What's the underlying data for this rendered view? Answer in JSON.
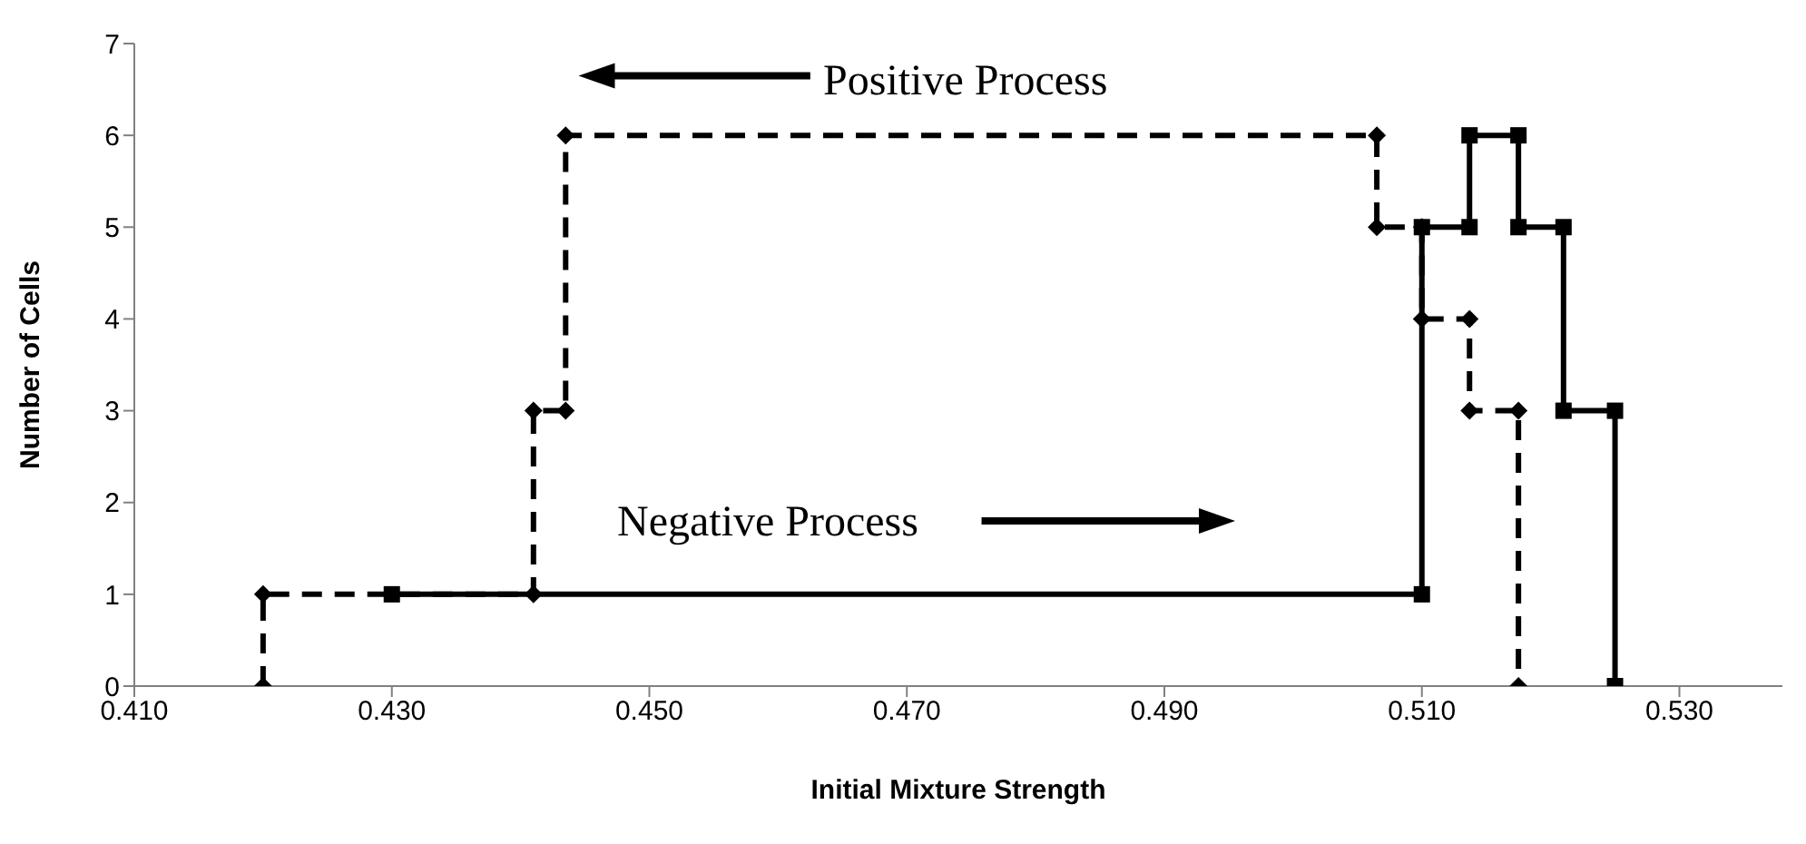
{
  "chart_data": {
    "type": "line",
    "xlabel": "Initial Mixture Strength",
    "ylabel": "Number of Cells",
    "xlim": [
      0.41,
      0.538
    ],
    "xticks": [
      {
        "value": 0.41,
        "label": "0.410"
      },
      {
        "value": 0.43,
        "label": "0.430"
      },
      {
        "value": 0.45,
        "label": "0.450"
      },
      {
        "value": 0.47,
        "label": "0.470"
      },
      {
        "value": 0.49,
        "label": "0.490"
      },
      {
        "value": 0.51,
        "label": "0.510"
      },
      {
        "value": 0.53,
        "label": "0.530"
      }
    ],
    "ylim": [
      0,
      7
    ],
    "yticks": [
      0,
      1,
      2,
      3,
      4,
      5,
      6,
      7
    ],
    "series": [
      {
        "color": "#000000",
        "marker": "diamond",
        "line_style": "dashed",
        "x": [
          0.42,
          0.42,
          0.441,
          0.441,
          0.4435,
          0.4435,
          0.5065,
          0.5065,
          0.51,
          0.51,
          0.5137,
          0.5137,
          0.5175,
          0.5175
        ],
        "values": [
          0,
          1,
          1,
          3,
          3,
          6,
          6,
          5,
          5,
          4,
          4,
          3,
          3,
          0
        ]
      },
      {
        "color": "#000000",
        "marker": "square",
        "line_style": "solid",
        "x": [
          0.43,
          0.51,
          0.51,
          0.5137,
          0.5137,
          0.5175,
          0.5175,
          0.521,
          0.521,
          0.525,
          0.525
        ],
        "values": [
          1,
          1,
          5,
          5,
          6,
          6,
          5,
          5,
          3,
          3,
          0
        ]
      }
    ],
    "annotations": [
      "Positive Process",
      "Negative Process"
    ]
  }
}
